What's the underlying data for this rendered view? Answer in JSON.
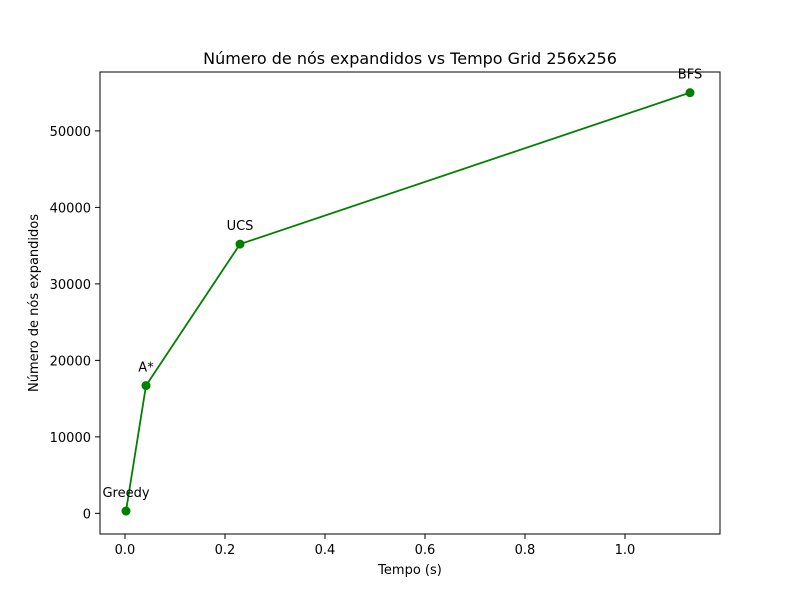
{
  "chart_data": {
    "type": "line",
    "title": "Número de nós expandidos vs Tempo Grid 256x256",
    "xlabel": "Tempo (s)",
    "ylabel": "Número de nós expandidos",
    "xlim": [
      -0.05,
      1.19
    ],
    "ylim": [
      -2700,
      57700
    ],
    "xticks": [
      0.0,
      0.2,
      0.4,
      0.6,
      0.8,
      1.0
    ],
    "xtick_labels": [
      "0.0",
      "0.2",
      "0.4",
      "0.6",
      "0.8",
      "1.0"
    ],
    "yticks": [
      0,
      10000,
      20000,
      30000,
      40000,
      50000
    ],
    "ytick_labels": [
      "0",
      "10000",
      "20000",
      "30000",
      "40000",
      "50000"
    ],
    "grid": false,
    "color": "#008000",
    "points": [
      {
        "label": "Greedy",
        "x": 0.002,
        "y": 300
      },
      {
        "label": "A*",
        "x": 0.042,
        "y": 16700
      },
      {
        "label": "UCS",
        "x": 0.23,
        "y": 35200
      },
      {
        "label": "BFS",
        "x": 1.13,
        "y": 55000
      }
    ]
  }
}
